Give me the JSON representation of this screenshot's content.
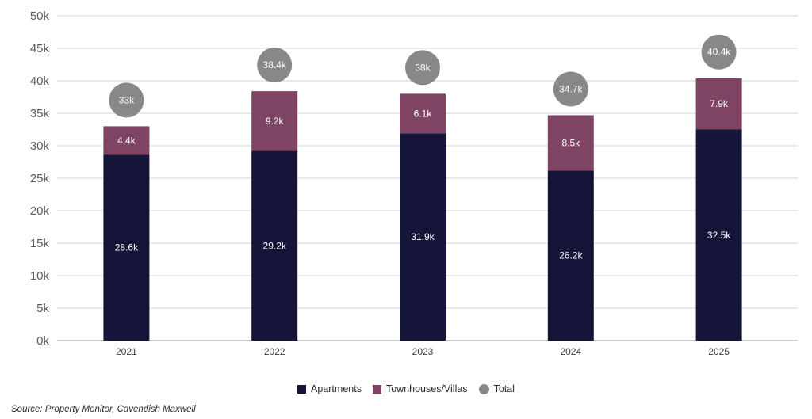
{
  "chart_data": {
    "type": "bar",
    "stacked": true,
    "categories": [
      "2021",
      "2022",
      "2023",
      "2024",
      "2025"
    ],
    "series": [
      {
        "name": "Apartments",
        "values": [
          28.6,
          29.2,
          31.9,
          26.2,
          32.5
        ],
        "labels": [
          "28.6k",
          "29.2k",
          "31.9k",
          "26.2k",
          "32.5k"
        ],
        "color": "#15153a"
      },
      {
        "name": "Townhouses/Villas",
        "values": [
          4.4,
          9.2,
          6.1,
          8.5,
          7.9
        ],
        "labels": [
          "4.4k",
          "9.2k",
          "6.1k",
          "8.5k",
          "7.9k"
        ],
        "color": "#7f4464"
      }
    ],
    "totals": {
      "name": "Total",
      "values": [
        33,
        38.4,
        38,
        34.7,
        40.4
      ],
      "labels": [
        "33k",
        "38.4k",
        "38k",
        "34.7k",
        "40.4k"
      ],
      "color": "#8a878a"
    },
    "ylim": [
      0,
      50
    ],
    "yticks": [
      0,
      5,
      10,
      15,
      20,
      25,
      30,
      35,
      40,
      45,
      50
    ],
    "ytick_labels": [
      "0k",
      "5k",
      "10k",
      "15k",
      "20k",
      "25k",
      "30k",
      "35k",
      "40k",
      "45k",
      "50k"
    ],
    "grid": true,
    "legend_position": "bottom-center",
    "title": "",
    "xlabel": "",
    "ylabel": ""
  },
  "legend": {
    "apartments": "Apartments",
    "townhouses": "Townhouses/Villas",
    "total": "Total"
  },
  "source": "Source: Property Monitor, Cavendish Maxwell"
}
